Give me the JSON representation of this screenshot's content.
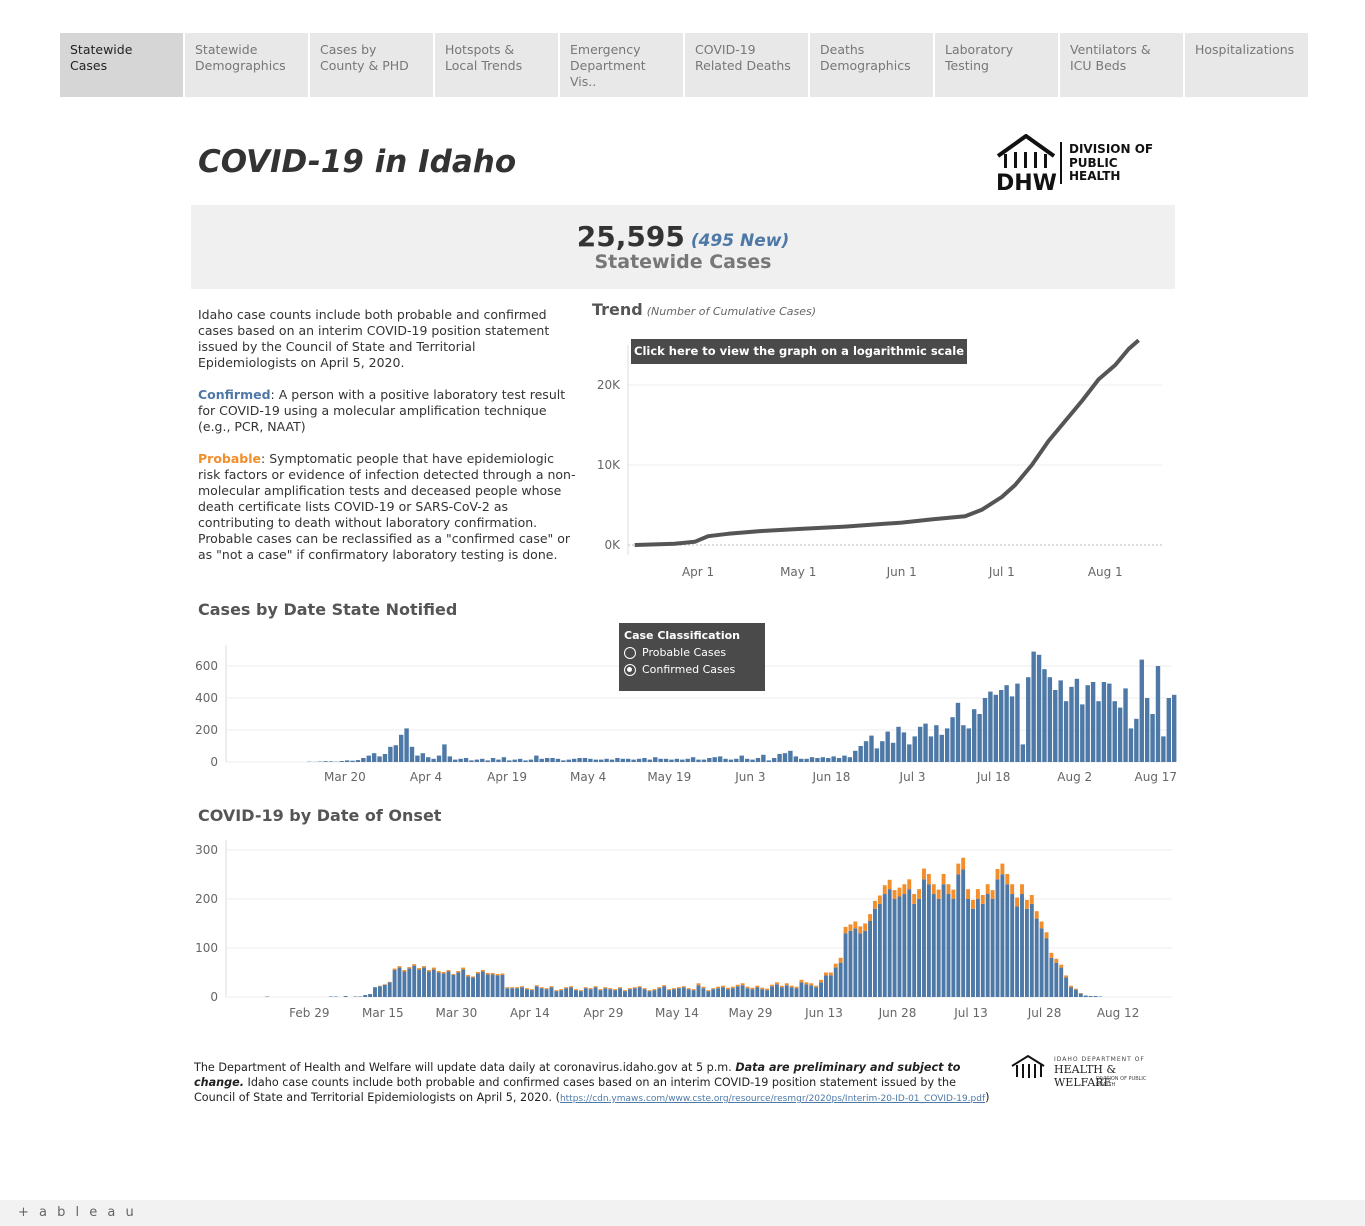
{
  "tabs": [
    "Statewide Cases",
    "Statewide Demographics",
    "Cases by County & PHD",
    "Hotspots & Local Trends",
    "Emergency Department Vis..",
    "COVID-19 Related Deaths",
    "Deaths Demographics",
    "Laboratory Testing",
    "Ventilators & ICU Beds",
    "Hospitalizations"
  ],
  "title": "COVID-19 in Idaho",
  "logo": {
    "l1": "DIVISION OF",
    "l2": "PUBLIC",
    "l3": "HEALTH",
    "mark": "DHW"
  },
  "summary": {
    "total": "25,595",
    "new": "(495 New)",
    "label": "Statewide Cases"
  },
  "description": {
    "intro": "Idaho case counts include both probable and confirmed cases based on an interim COVID-19 position statement issued by the Council of State and Territorial Epidemiologists on April 5, 2020.",
    "confirmed_term": "Confirmed",
    "confirmed_text": ": A person with a positive laboratory test result for COVID-19 using a molecular amplification technique (e.g., PCR, NAAT)",
    "probable_term": "Probable",
    "probable_text": ": Symptomatic people that have epidemiologic risk factors or evidence of infection detected through a non-molecular amplification tests and deceased people whose death certificate lists  COVID-19 or SARS-CoV-2 as contributing to death without laboratory confirmation. Probable cases can be reclassified as a \"confirmed case\" or as \"not a case\" if confirmatory laboratory testing is done."
  },
  "trend": {
    "heading": "Trend",
    "subheading": "(Number of Cumulative Cases)",
    "log_button": "Click here to view the graph on a logarithmic scale"
  },
  "notified": {
    "heading": "Cases by Date State Notified"
  },
  "legend": {
    "title": "Case Classification",
    "opt1": "Probable Cases",
    "opt2": "Confirmed Cases",
    "selected": "Confirmed Cases"
  },
  "onset": {
    "heading": "COVID-19 by Date of Onset"
  },
  "footer": {
    "text1": "The Department of Health and Welfare will update data daily at coronavirus.idaho.gov at 5 p.m. ",
    "bold": "Data are preliminary and subject to change.",
    "text2": " Idaho case counts include both probable and confirmed cases based on an interim COVID-19 position statement issued by the Council of State and Territorial Epidemiologists on April 5, 2020. (",
    "link": "https://cdn.ymaws.com/www.cste.org/resource/resmgr/2020ps/Interim-20-ID-01_COVID-19.pdf",
    "text3": ")"
  },
  "footer_logo": {
    "top": "IDAHO DEPARTMENT OF",
    "main": "HEALTH & WELFARE",
    "sub": "DIVISION OF PUBLIC HEALTH"
  },
  "tableau": "+ a b l e a u",
  "colors": {
    "confirmed": "#4e79a7",
    "probable": "#f28e2b",
    "line": "#555555"
  },
  "chart_data": [
    {
      "type": "line",
      "name": "trend",
      "title": "Trend",
      "x_ticks": [
        "Apr 1",
        "May 1",
        "Jun 1",
        "Jul 1",
        "Aug 1"
      ],
      "y_ticks": [
        "0K",
        "10K",
        "20K"
      ],
      "ylim": [
        0,
        25000
      ],
      "x": [
        "2020-03-13",
        "2020-03-25",
        "2020-03-31",
        "2020-04-04",
        "2020-04-10",
        "2020-04-20",
        "2020-05-01",
        "2020-05-15",
        "2020-06-01",
        "2020-06-10",
        "2020-06-20",
        "2020-06-25",
        "2020-07-01",
        "2020-07-05",
        "2020-07-10",
        "2020-07-15",
        "2020-07-20",
        "2020-07-25",
        "2020-07-30",
        "2020-08-04",
        "2020-08-08",
        "2020-08-11"
      ],
      "values": [
        0,
        150,
        400,
        1100,
        1400,
        1750,
        2000,
        2300,
        2800,
        3200,
        3600,
        4400,
        6000,
        7500,
        10000,
        13000,
        15500,
        18000,
        20700,
        22500,
        24500,
        25595
      ]
    },
    {
      "type": "bar",
      "name": "notified",
      "title": "Cases by Date State Notified",
      "x_ticks": [
        "Mar 20",
        "Apr 4",
        "Apr 19",
        "May 4",
        "May 19",
        "Jun 3",
        "Jun 18",
        "Jul 3",
        "Jul 18",
        "Aug 2",
        "Aug 17"
      ],
      "y_ticks": [
        "0",
        "200",
        "400",
        "600"
      ],
      "ylim": [
        0,
        700
      ],
      "start": "2020-03-13",
      "values": [
        2,
        1,
        3,
        5,
        4,
        2,
        6,
        10,
        8,
        12,
        25,
        40,
        55,
        35,
        50,
        95,
        105,
        170,
        210,
        95,
        40,
        55,
        30,
        20,
        40,
        110,
        35,
        15,
        20,
        25,
        10,
        15,
        20,
        10,
        25,
        15,
        30,
        10,
        15,
        20,
        10,
        15,
        40,
        20,
        25,
        25,
        20,
        10,
        15,
        20,
        25,
        25,
        20,
        15,
        15,
        20,
        15,
        25,
        20,
        20,
        15,
        20,
        25,
        15,
        30,
        20,
        20,
        15,
        20,
        15,
        20,
        30,
        15,
        15,
        25,
        30,
        35,
        20,
        15,
        20,
        40,
        20,
        15,
        25,
        45,
        10,
        25,
        50,
        55,
        70,
        35,
        20,
        20,
        30,
        25,
        30,
        25,
        35,
        25,
        40,
        30,
        70,
        100,
        130,
        165,
        85,
        130,
        190,
        120,
        220,
        185,
        110,
        160,
        220,
        240,
        160,
        230,
        170,
        210,
        280,
        370,
        230,
        210,
        330,
        300,
        400,
        440,
        420,
        450,
        480,
        410,
        490,
        110,
        530,
        690,
        670,
        580,
        530,
        450,
        510,
        380,
        470,
        520,
        360,
        480,
        500,
        380,
        500,
        490,
        380,
        340,
        460,
        210,
        270,
        640,
        400,
        300,
        600,
        160,
        400,
        420
      ]
    },
    {
      "type": "bar",
      "name": "onset",
      "title": "COVID-19 by Date of Onset",
      "x_ticks": [
        "Feb 29",
        "Mar 15",
        "Mar 30",
        "Apr 14",
        "Apr 29",
        "May 14",
        "May 29",
        "Jun 13",
        "Jun 28",
        "Jul 13",
        "Jul 28",
        "Aug 12"
      ],
      "y_ticks": [
        "0",
        "100",
        "200",
        "300"
      ],
      "ylim": [
        0,
        310
      ],
      "start": "2020-02-20",
      "series": [
        {
          "name": "Confirmed Cases",
          "values": [
            1,
            0,
            0,
            0,
            0,
            0,
            0,
            0,
            0,
            0,
            0,
            0,
            0,
            1,
            1,
            0,
            2,
            0,
            1,
            1,
            4,
            6,
            20,
            22,
            25,
            30,
            55,
            60,
            52,
            58,
            64,
            56,
            60,
            52,
            56,
            50,
            48,
            52,
            45,
            50,
            56,
            42,
            40,
            48,
            52,
            46,
            46,
            44,
            45,
            18,
            18,
            18,
            20,
            16,
            14,
            22,
            18,
            16,
            20,
            12,
            14,
            18,
            20,
            14,
            12,
            18,
            16,
            20,
            14,
            18,
            16,
            14,
            18,
            12,
            16,
            18,
            20,
            16,
            12,
            14,
            18,
            22,
            14,
            16,
            18,
            20,
            16,
            14,
            24,
            18,
            12,
            16,
            18,
            20,
            16,
            18,
            22,
            24,
            18,
            16,
            20,
            16,
            14,
            22,
            26,
            20,
            24,
            20,
            18,
            30,
            26,
            24,
            20,
            30,
            44,
            44,
            60,
            70,
            130,
            135,
            140,
            130,
            135,
            155,
            180,
            190,
            210,
            220,
            200,
            205,
            210,
            220,
            190,
            200,
            240,
            230,
            210,
            200,
            230,
            210,
            200,
            250,
            260,
            200,
            180,
            200,
            190,
            210,
            200,
            240,
            250,
            230,
            210,
            185,
            210,
            180,
            190,
            160,
            140,
            120,
            80,
            70,
            60,
            40,
            20,
            15,
            7,
            3,
            2,
            2,
            1
          ]
        },
        {
          "name": "Probable Cases",
          "values": [
            0,
            0,
            0,
            0,
            0,
            0,
            0,
            0,
            0,
            0,
            0,
            0,
            0,
            0,
            0,
            0,
            0,
            0,
            0,
            0,
            0,
            0,
            0,
            1,
            1,
            1,
            3,
            3,
            3,
            3,
            3,
            3,
            3,
            3,
            4,
            3,
            3,
            3,
            2,
            3,
            4,
            3,
            2,
            3,
            3,
            3,
            3,
            3,
            3,
            2,
            2,
            2,
            2,
            2,
            2,
            2,
            2,
            2,
            2,
            2,
            2,
            2,
            2,
            2,
            2,
            2,
            2,
            2,
            2,
            2,
            2,
            2,
            2,
            2,
            2,
            2,
            2,
            2,
            2,
            2,
            2,
            2,
            2,
            2,
            2,
            2,
            2,
            2,
            4,
            3,
            2,
            2,
            3,
            3,
            3,
            3,
            3,
            4,
            3,
            3,
            3,
            3,
            3,
            3,
            4,
            3,
            4,
            3,
            3,
            5,
            4,
            4,
            3,
            5,
            6,
            6,
            8,
            10,
            13,
            13,
            14,
            14,
            15,
            14,
            16,
            17,
            18,
            19,
            18,
            18,
            20,
            20,
            20,
            20,
            22,
            21,
            20,
            19,
            21,
            20,
            19,
            22,
            24,
            20,
            18,
            20,
            18,
            20,
            18,
            21,
            22,
            21,
            20,
            18,
            20,
            18,
            18,
            15,
            14,
            12,
            10,
            8,
            6,
            4,
            3,
            2,
            1,
            0,
            0,
            0,
            0
          ]
        }
      ]
    }
  ]
}
